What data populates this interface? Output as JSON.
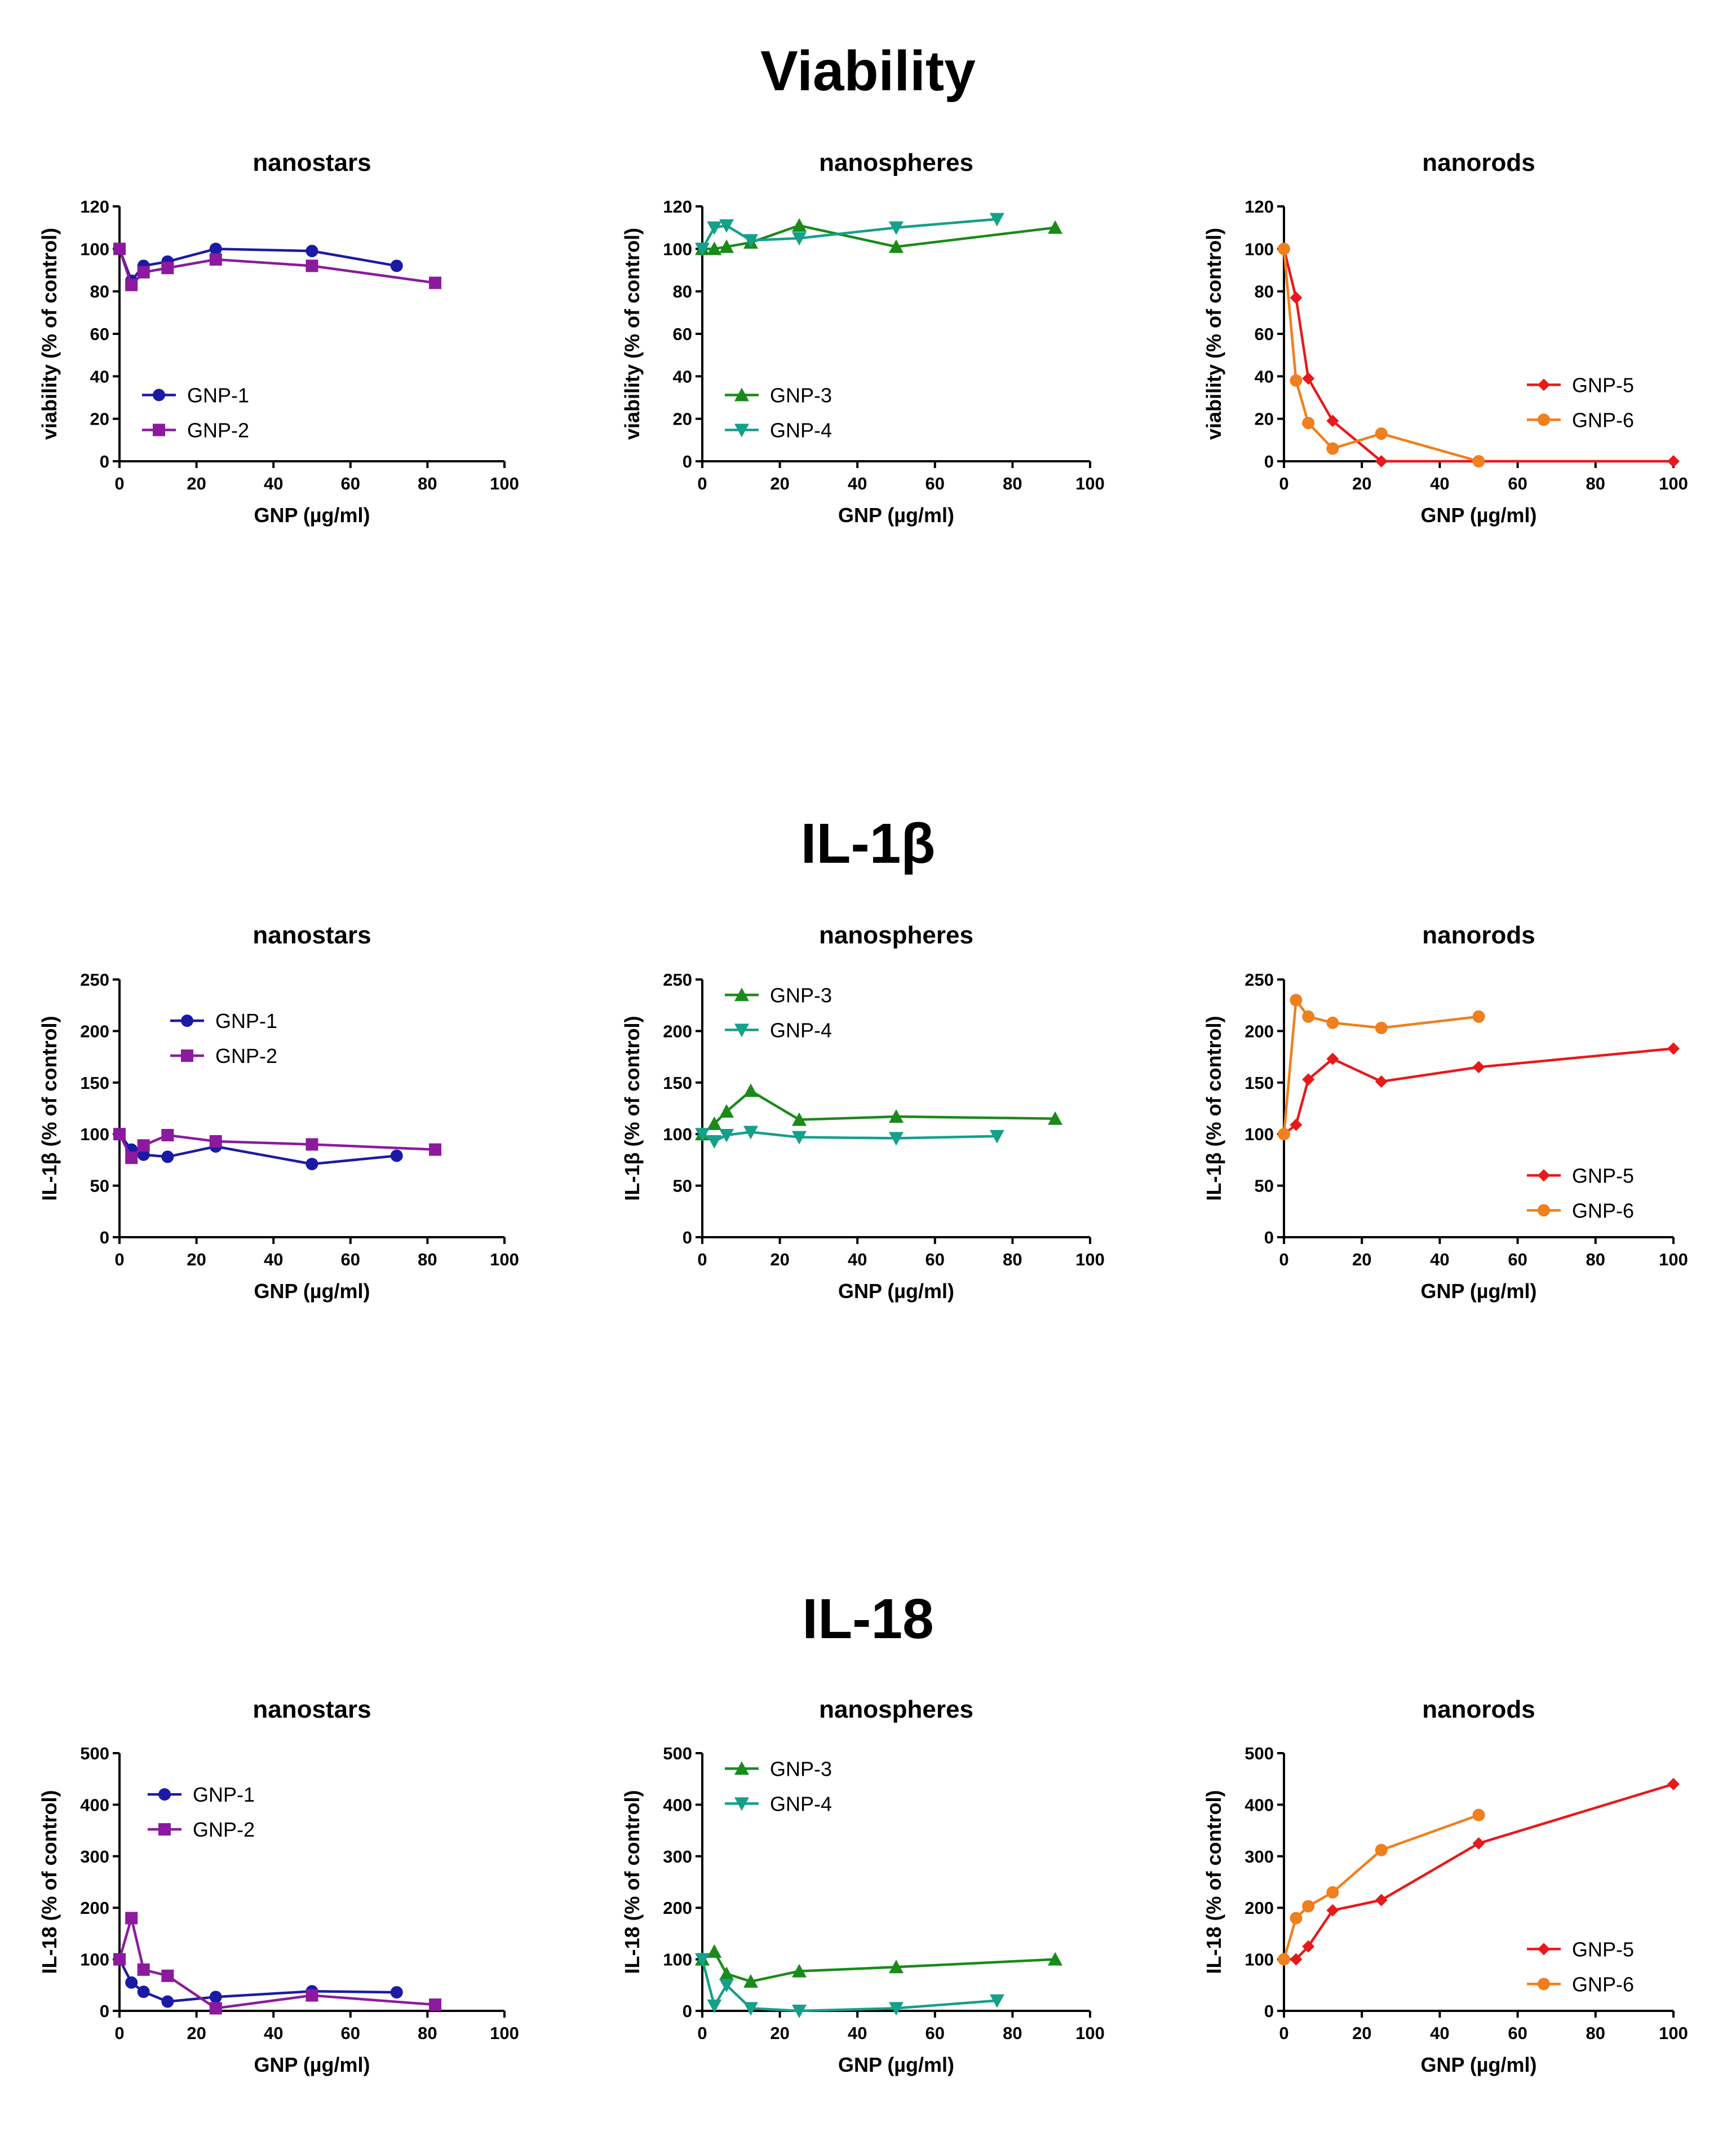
{
  "sections": [
    {
      "title": "Viability",
      "ylabel": "viability (% of control)",
      "ylim": [
        0,
        120
      ],
      "yticks": [
        0,
        20,
        40,
        60,
        80,
        100,
        120
      ]
    },
    {
      "title": "IL-1β",
      "ylabel": "IL-1β (% of control)",
      "ylim": [
        0,
        250
      ],
      "yticks": [
        0,
        50,
        100,
        150,
        200,
        250
      ]
    },
    {
      "title": "IL-18",
      "ylabel": "IL-18 (% of control)",
      "ylim": [
        0,
        500
      ],
      "yticks": [
        0,
        100,
        200,
        300,
        400,
        500
      ]
    }
  ],
  "panels": [
    "nanostars",
    "nanospheres",
    "nanorods"
  ],
  "xlabel": "GNP (µg/ml)",
  "xlim": [
    0,
    100
  ],
  "xticks": [
    0,
    20,
    40,
    60,
    80,
    100
  ],
  "series_style": {
    "GNP-1": {
      "color": "#1a1aa6",
      "marker": "circle"
    },
    "GNP-2": {
      "color": "#8b1a9e",
      "marker": "square"
    },
    "GNP-3": {
      "color": "#1a8a1a",
      "marker": "triangle-up"
    },
    "GNP-4": {
      "color": "#14a08a",
      "marker": "triangle-down"
    },
    "GNP-5": {
      "color": "#e8191a",
      "marker": "diamond"
    },
    "GNP-6": {
      "color": "#f07f1e",
      "marker": "circle"
    }
  },
  "chart_data": [
    {
      "type": "line",
      "section": "Viability",
      "title": "nanostars",
      "xlabel": "GNP (µg/ml)",
      "ylabel": "viability (% of control)",
      "xlim": [
        0,
        100
      ],
      "ylim": [
        0,
        120
      ],
      "legend": "bottom-left",
      "series": [
        {
          "name": "GNP-1",
          "x": [
            0,
            3.1,
            6.25,
            12.5,
            25,
            50,
            72
          ],
          "y": [
            100,
            85,
            92,
            94,
            100,
            99,
            92
          ]
        },
        {
          "name": "GNP-2",
          "x": [
            0,
            3.1,
            6.25,
            12.5,
            25,
            50,
            82
          ],
          "y": [
            100,
            83,
            89,
            91,
            95,
            92,
            84
          ]
        }
      ]
    },
    {
      "type": "line",
      "section": "Viability",
      "title": "nanospheres",
      "xlabel": "GNP (µg/ml)",
      "ylabel": "viability (% of control)",
      "xlim": [
        0,
        100
      ],
      "ylim": [
        0,
        120
      ],
      "legend": "bottom-left",
      "series": [
        {
          "name": "GNP-3",
          "x": [
            0,
            3.1,
            6.25,
            12.5,
            25,
            50,
            91
          ],
          "y": [
            100,
            100,
            101,
            103,
            111,
            101,
            110
          ]
        },
        {
          "name": "GNP-4",
          "x": [
            0,
            3.1,
            6.25,
            12.5,
            25,
            50,
            76
          ],
          "y": [
            100,
            110,
            111,
            104,
            105,
            110,
            114
          ]
        }
      ]
    },
    {
      "type": "line",
      "section": "Viability",
      "title": "nanorods",
      "xlabel": "GNP (µg/ml)",
      "ylabel": "viability (% of control)",
      "xlim": [
        0,
        100
      ],
      "ylim": [
        0,
        120
      ],
      "legend": "bottom-right",
      "series": [
        {
          "name": "GNP-5",
          "x": [
            0,
            3.1,
            6.25,
            12.5,
            25,
            50,
            100
          ],
          "y": [
            100,
            77,
            39,
            19,
            0,
            0,
            0
          ]
        },
        {
          "name": "GNP-6",
          "x": [
            0,
            3.1,
            6.25,
            12.5,
            25,
            50
          ],
          "y": [
            100,
            38,
            18,
            6,
            13,
            0
          ]
        }
      ]
    },
    {
      "type": "line",
      "section": "IL-1β",
      "title": "nanostars",
      "xlabel": "GNP (µg/ml)",
      "ylabel": "IL-1β (% of control)",
      "xlim": [
        0,
        100
      ],
      "ylim": [
        0,
        250
      ],
      "legend": "top-left",
      "series": [
        {
          "name": "GNP-1",
          "x": [
            0,
            3.1,
            6.25,
            12.5,
            25,
            50,
            72
          ],
          "y": [
            100,
            85,
            80,
            78,
            88,
            71,
            79
          ]
        },
        {
          "name": "GNP-2",
          "x": [
            0,
            3.1,
            6.25,
            12.5,
            25,
            50,
            82
          ],
          "y": [
            100,
            77,
            89,
            99,
            93,
            90,
            85
          ]
        }
      ]
    },
    {
      "type": "line",
      "section": "IL-1β",
      "title": "nanospheres",
      "xlabel": "GNP (µg/ml)",
      "ylabel": "IL-1β (% of control)",
      "xlim": [
        0,
        100
      ],
      "ylim": [
        0,
        250
      ],
      "legend": "top-left",
      "series": [
        {
          "name": "GNP-3",
          "x": [
            0,
            3.1,
            6.25,
            12.5,
            25,
            50,
            91
          ],
          "y": [
            100,
            110,
            122,
            142,
            114,
            117,
            115
          ]
        },
        {
          "name": "GNP-4",
          "x": [
            0,
            3.1,
            6.25,
            12.5,
            25,
            50,
            76
          ],
          "y": [
            100,
            93,
            99,
            102,
            97,
            96,
            98
          ]
        }
      ]
    },
    {
      "type": "line",
      "section": "IL-1β",
      "title": "nanorods",
      "xlabel": "GNP (µg/ml)",
      "ylabel": "IL-1β (% of control)",
      "xlim": [
        0,
        100
      ],
      "ylim": [
        0,
        250
      ],
      "legend": "bottom-right",
      "series": [
        {
          "name": "GNP-5",
          "x": [
            0,
            3.1,
            6.25,
            12.5,
            25,
            50,
            100
          ],
          "y": [
            100,
            109,
            153,
            173,
            151,
            165,
            183
          ]
        },
        {
          "name": "GNP-6",
          "x": [
            0,
            3.1,
            6.25,
            12.5,
            25,
            50
          ],
          "y": [
            100,
            230,
            214,
            208,
            203,
            214
          ]
        }
      ]
    },
    {
      "type": "line",
      "section": "IL-18",
      "title": "nanostars",
      "xlabel": "GNP (µg/ml)",
      "ylabel": "IL-18 (% of control)",
      "xlim": [
        0,
        100
      ],
      "ylim": [
        0,
        500
      ],
      "legend": "top-left",
      "series": [
        {
          "name": "GNP-1",
          "x": [
            0,
            3.1,
            6.25,
            12.5,
            25,
            50,
            72
          ],
          "y": [
            100,
            55,
            37,
            18,
            27,
            38,
            36
          ]
        },
        {
          "name": "GNP-2",
          "x": [
            0,
            3.1,
            6.25,
            12.5,
            25,
            50,
            82
          ],
          "y": [
            100,
            180,
            80,
            68,
            5,
            30,
            12
          ]
        }
      ]
    },
    {
      "type": "line",
      "section": "IL-18",
      "title": "nanospheres",
      "xlabel": "GNP (µg/ml)",
      "ylabel": "IL-18 (% of control)",
      "xlim": [
        0,
        100
      ],
      "ylim": [
        0,
        500
      ],
      "legend": "top-left",
      "series": [
        {
          "name": "GNP-3",
          "x": [
            0,
            3.1,
            6.25,
            12.5,
            25,
            50,
            91
          ],
          "y": [
            100,
            115,
            72,
            57,
            77,
            85,
            100
          ]
        },
        {
          "name": "GNP-4",
          "x": [
            0,
            3.1,
            6.25,
            12.5,
            25,
            50,
            76
          ],
          "y": [
            100,
            10,
            50,
            5,
            0,
            5,
            20
          ]
        }
      ]
    },
    {
      "type": "line",
      "section": "IL-18",
      "title": "nanorods",
      "xlabel": "GNP (µg/ml)",
      "ylabel": "IL-18 (% of control)",
      "xlim": [
        0,
        100
      ],
      "ylim": [
        0,
        500
      ],
      "legend": "bottom-right",
      "series": [
        {
          "name": "GNP-5",
          "x": [
            0,
            3.1,
            6.25,
            12.5,
            25,
            50,
            100
          ],
          "y": [
            100,
            100,
            125,
            195,
            215,
            325,
            440
          ]
        },
        {
          "name": "GNP-6",
          "x": [
            0,
            3.1,
            6.25,
            12.5,
            25,
            50
          ],
          "y": [
            100,
            180,
            203,
            230,
            312,
            380
          ]
        }
      ]
    }
  ]
}
